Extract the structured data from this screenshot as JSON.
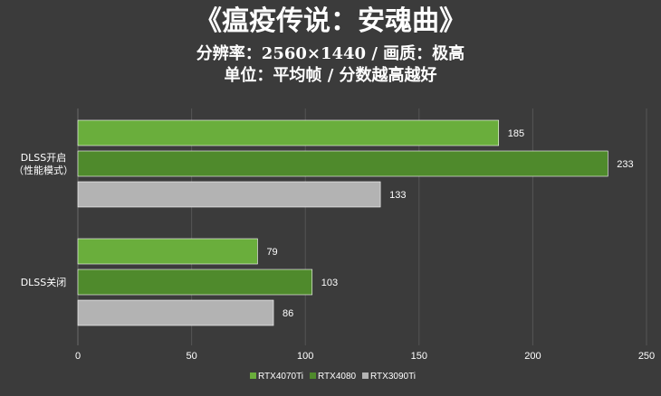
{
  "title": "《瘟疫传说：安魂曲》",
  "subtitle1": "分辨率：2560×1440 / 画质：极高",
  "subtitle2": "单位：平均帧 / 分数越高越好",
  "chart_data": {
    "type": "bar",
    "orientation": "horizontal",
    "categories": [
      [
        "DLSS开启",
        "（性能模式）"
      ],
      [
        "DLSS关闭"
      ]
    ],
    "series": [
      {
        "name": "RTX4070Ti",
        "color": "#6aae3c",
        "values": [
          185,
          79
        ]
      },
      {
        "name": "RTX4080",
        "color": "#4f8a2c",
        "values": [
          233,
          103
        ]
      },
      {
        "name": "RTX3090Ti",
        "color": "#b3b3b3",
        "values": [
          133,
          86
        ]
      }
    ],
    "xlim": [
      0,
      250
    ],
    "xticks": [
      0,
      50,
      100,
      150,
      200,
      250
    ],
    "grid": true,
    "legend": "bottom"
  }
}
